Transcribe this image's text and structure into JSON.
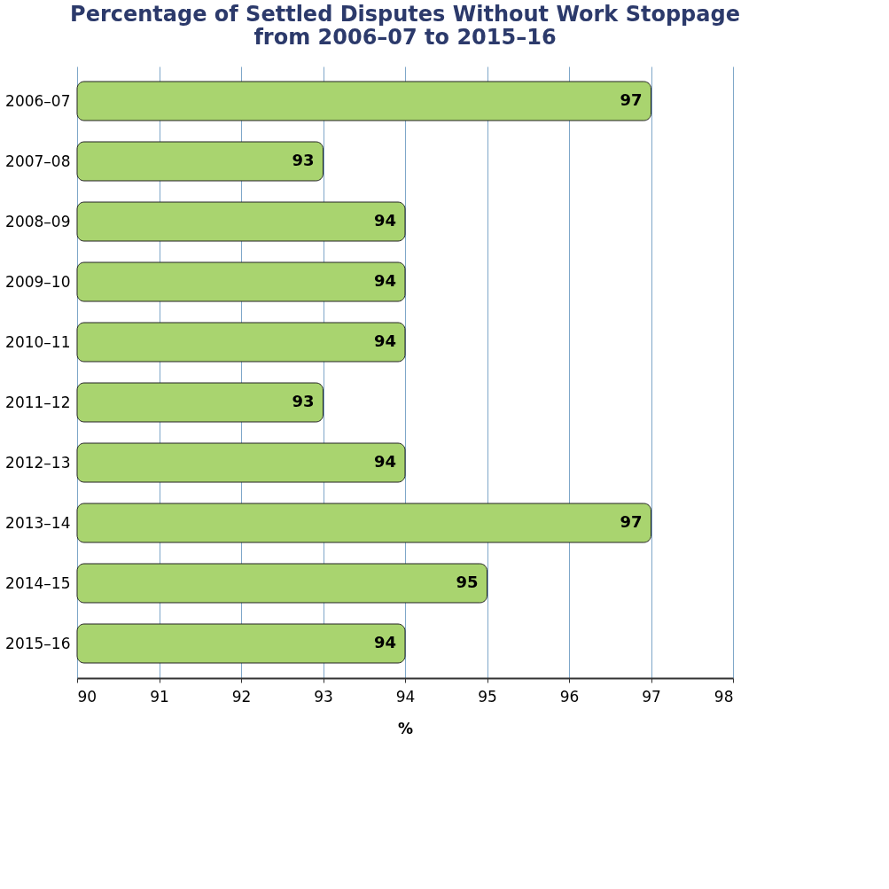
{
  "chart_data": {
    "type": "bar",
    "orientation": "horizontal",
    "title": "Percentage of Settled Disputes Without Work Stoppage\nfrom 2006–07 to 2015–16",
    "xlabel": "%",
    "categories": [
      "2006–07",
      "2007–08",
      "2008–09",
      "2009–10",
      "2010–11",
      "2011–12",
      "2012–13",
      "2013–14",
      "2014–15",
      "2015–16"
    ],
    "values": [
      97,
      93,
      94,
      94,
      94,
      93,
      94,
      97,
      95,
      94
    ],
    "color": "#a9d46f",
    "xlim": [
      90,
      98
    ],
    "xticks": [
      90,
      91,
      92,
      93,
      94,
      95,
      96,
      97,
      98
    ],
    "grid": "x",
    "data_labels": true
  }
}
